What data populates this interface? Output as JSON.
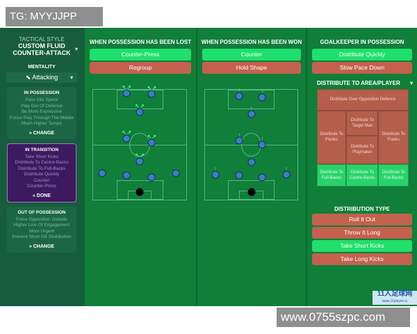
{
  "watermarks": {
    "top": "TG: MYYJJPP",
    "bottom": "www.0755szpc.com",
    "logo": "11人足球网",
    "logo_sub": "www.11player.cc"
  },
  "sidebar": {
    "tactical_style_label": "TACTICAL STYLE",
    "style_name_1": "CUSTOM FLUID",
    "style_name_2": "COUNTER-ATTACK",
    "mentality_label": "MENTALITY",
    "mentality": "Attacking",
    "cards": [
      {
        "title": "IN POSSESSION",
        "items": [
          "Pass Into Space",
          "Play Out Of Defence",
          "Be More Expressive",
          "Focus Play Through The Middle",
          "Much Higher Tempo"
        ],
        "action": "»  CHANGE",
        "active": false
      },
      {
        "title": "IN TRANSITION",
        "items": [
          "Take Short Kicks",
          "Distribute To Centre-Backs",
          "Distribute To Full-Backs",
          "Distribute Quickly",
          "Counter",
          "Counter-Press"
        ],
        "action": "«  DONE",
        "active": true
      },
      {
        "title": "OUT OF POSSESSION",
        "items": [
          "Force Opposition Outside",
          "Higher Line Of Engagement",
          "More Urgent",
          "Prevent Short GK Distribution"
        ],
        "action": "»  CHANGE",
        "active": false
      }
    ]
  },
  "lost": {
    "title": "WHEN POSSESSION HAS BEEN LOST",
    "options": [
      {
        "label": "Counter-Press",
        "selected": true
      },
      {
        "label": "Regroup",
        "selected": false
      }
    ]
  },
  "won": {
    "title": "WHEN POSSESSION HAS BEEN WON",
    "options": [
      {
        "label": "Counter",
        "selected": true
      },
      {
        "label": "Hold Shape",
        "selected": false
      }
    ]
  },
  "gk": {
    "title": "GOALKEEPER IN POSSESSION",
    "options": [
      {
        "label": "Distribute Quickly",
        "selected": true
      },
      {
        "label": "Slow Pace Down",
        "selected": false
      }
    ],
    "area_title": "DISTRIBUTE TO AREA/PLAYER",
    "areas": {
      "over": "Distribute Over Opposition Defence",
      "flank_l": "Distribute To Flanks",
      "target": "Distribute To Target Man",
      "flank_r": "Distribute To Flanks",
      "playmaker": "Distribute To Playmaker",
      "fb_l": "Distribute To Full-Backs",
      "cb": "Distribute To Centre-Backs",
      "fb_r": "Distribute To Full-Backs"
    },
    "selected_areas": [
      "fb_l",
      "cb",
      "fb_r"
    ],
    "type_title": "DISTRIBUTION TYPE",
    "types": [
      {
        "label": "Roll It Out",
        "selected": false
      },
      {
        "label": "Throw It Long",
        "selected": false
      },
      {
        "label": "Take Short Kicks",
        "selected": true
      },
      {
        "label": "Take Long Kicks",
        "selected": false
      }
    ]
  },
  "colors": {
    "selected": "#1fe06a",
    "unselected": "#c4614e",
    "pitch": "#0f7f3a",
    "sidebar": "#175c3d",
    "transition": "#3d1a5f"
  }
}
